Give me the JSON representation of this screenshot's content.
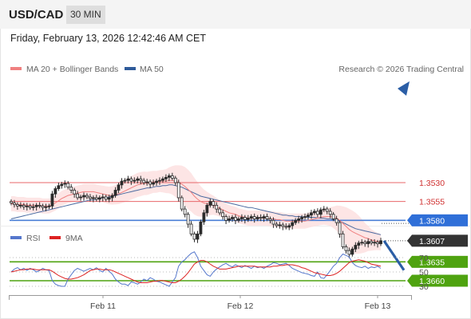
{
  "header": {
    "symbol": "USD/CAD",
    "timeframe": "30 MIN",
    "datetime": "Friday, February 13, 2026 12:42:46 AM CET",
    "watermark": "Research © 2026 Trading Central"
  },
  "colors": {
    "resistance": "#4fa310",
    "pivot": "#4a7fd6",
    "support": "#e8676a",
    "last": "#333333",
    "arrow": "#2b5ea6",
    "band": "#fde0e0",
    "ma20": "#f08080",
    "ma50": "#4a6aa0",
    "rsi": "#5577cc",
    "rsi_ma": "#dd2222"
  },
  "chart_data": [
    {
      "type": "candlestick",
      "title": "",
      "legend": [
        {
          "name": "MA 20 + Bollinger Bands",
          "color": "#f08080"
        },
        {
          "name": "MA 50",
          "color": "#2e5a9a"
        }
      ],
      "x_ticks": [
        "Feb 11",
        "Feb 12",
        "Feb 13"
      ],
      "ylim": [
        1.351,
        1.3672
      ],
      "levels": [
        {
          "value": "1.3660",
          "kind": "resistance"
        },
        {
          "value": "1.3635",
          "kind": "resistance"
        },
        {
          "value": "1.3607",
          "kind": "last"
        },
        {
          "value": "1.3580",
          "kind": "pivot"
        },
        {
          "value": "1.3555",
          "kind": "support"
        },
        {
          "value": "1.3530",
          "kind": "support"
        }
      ],
      "close": [
        1.3557,
        1.3559,
        1.3561,
        1.356,
        1.3562,
        1.3561,
        1.3563,
        1.3562,
        1.356,
        1.3561,
        1.3563,
        1.3562,
        1.3561,
        1.3545,
        1.3538,
        1.3534,
        1.3532,
        1.3531,
        1.3536,
        1.354,
        1.3545,
        1.355,
        1.3549,
        1.3547,
        1.3549,
        1.3551,
        1.355,
        1.3552,
        1.355,
        1.3549,
        1.3552,
        1.355,
        1.3547,
        1.354,
        1.3533,
        1.3528,
        1.3527,
        1.3525,
        1.3528,
        1.3527,
        1.3525,
        1.3527,
        1.353,
        1.3529,
        1.3532,
        1.353,
        1.3528,
        1.3527,
        1.3525,
        1.3523,
        1.3521,
        1.3524,
        1.353,
        1.355,
        1.3565,
        1.3572,
        1.3585,
        1.3598,
        1.3605,
        1.3598,
        1.3582,
        1.357,
        1.356,
        1.3555,
        1.356,
        1.3565,
        1.357,
        1.3575,
        1.358,
        1.3578,
        1.3576,
        1.358,
        1.3578,
        1.3576,
        1.3579,
        1.3577,
        1.3575,
        1.3578,
        1.3576,
        1.3577,
        1.3575,
        1.3578,
        1.358,
        1.3585,
        1.3587,
        1.3586,
        1.3588,
        1.3589,
        1.3587,
        1.3583,
        1.358,
        1.3578,
        1.3576,
        1.3575,
        1.3573,
        1.357,
        1.3568,
        1.3572,
        1.3566,
        1.3565,
        1.3568,
        1.3572,
        1.3578,
        1.3583,
        1.3598,
        1.3615,
        1.362,
        1.3625,
        1.3618,
        1.3613,
        1.361,
        1.3609,
        1.3611,
        1.3608,
        1.361,
        1.3609,
        1.3611,
        1.3607
      ],
      "ma20": [
        1.3558,
        1.3558,
        1.3559,
        1.3559,
        1.3559,
        1.356,
        1.356,
        1.356,
        1.356,
        1.356,
        1.3561,
        1.3561,
        1.3561,
        1.3559,
        1.3557,
        1.3554,
        1.3551,
        1.3549,
        1.3547,
        1.3546,
        1.3545,
        1.3544,
        1.3543,
        1.3542,
        1.3542,
        1.3542,
        1.3542,
        1.3543,
        1.3544,
        1.3545,
        1.3546,
        1.3547,
        1.3547,
        1.3546,
        1.3545,
        1.3543,
        1.3541,
        1.3539,
        1.3537,
        1.3535,
        1.3533,
        1.3532,
        1.3531,
        1.3531,
        1.353,
        1.3529,
        1.3529,
        1.3528,
        1.3528,
        1.3528,
        1.3527,
        1.3527,
        1.3528,
        1.353,
        1.3532,
        1.3535,
        1.3539,
        1.3543,
        1.3548,
        1.3552,
        1.3555,
        1.3557,
        1.3558,
        1.3559,
        1.356,
        1.3562,
        1.3564,
        1.3566,
        1.3568,
        1.357,
        1.3571,
        1.3572,
        1.3574,
        1.3575,
        1.3576,
        1.3577,
        1.3577,
        1.3577,
        1.3577,
        1.3577,
        1.3577,
        1.3577,
        1.3578,
        1.3578,
        1.3579,
        1.3579,
        1.358,
        1.3581,
        1.3581,
        1.3581,
        1.3581,
        1.3581,
        1.3581,
        1.3581,
        1.358,
        1.3579,
        1.3578,
        1.3577,
        1.3576,
        1.3575,
        1.3575,
        1.3575,
        1.3576,
        1.3577,
        1.358,
        1.3584,
        1.3588,
        1.3592,
        1.3595,
        1.3597,
        1.3599,
        1.3601,
        1.3603,
        1.3604,
        1.3606,
        1.3607,
        1.3608,
        1.3609
      ],
      "ma50": [
        1.3578,
        1.3577,
        1.3576,
        1.3575,
        1.3574,
        1.3573,
        1.3572,
        1.3571,
        1.357,
        1.3569,
        1.3568,
        1.3567,
        1.3566,
        1.3565,
        1.3564,
        1.3563,
        1.3562,
        1.3561,
        1.356,
        1.3559,
        1.3558,
        1.3557,
        1.3556,
        1.3555,
        1.3554,
        1.3553,
        1.3553,
        1.3552,
        1.3551,
        1.355,
        1.355,
        1.3549,
        1.3548,
        1.3547,
        1.3546,
        1.3545,
        1.3544,
        1.3543,
        1.3542,
        1.3541,
        1.354,
        1.3539,
        1.3538,
        1.3537,
        1.3537,
        1.3536,
        1.3535,
        1.3535,
        1.3534,
        1.3534,
        1.3533,
        1.3533,
        1.3534,
        1.3535,
        1.3536,
        1.3538,
        1.354,
        1.3542,
        1.3544,
        1.3546,
        1.3548,
        1.3549,
        1.355,
        1.3551,
        1.3552,
        1.3553,
        1.3554,
        1.3555,
        1.3556,
        1.3557,
        1.3558,
        1.3559,
        1.356,
        1.3561,
        1.3562,
        1.3563,
        1.3563,
        1.3564,
        1.3565,
        1.3566,
        1.3567,
        1.3568,
        1.3569,
        1.357,
        1.3571,
        1.3572,
        1.3573,
        1.3573,
        1.3574,
        1.3574,
        1.3575,
        1.3575,
        1.3575,
        1.3576,
        1.3576,
        1.3576,
        1.3576,
        1.3577,
        1.3577,
        1.3577,
        1.3578,
        1.3578,
        1.3579,
        1.358,
        1.3581,
        1.3583,
        1.3585,
        1.3587,
        1.3589,
        1.3591,
        1.3592,
        1.3593,
        1.3594,
        1.3595,
        1.3596,
        1.3597,
        1.3598,
        1.3599
      ]
    },
    {
      "type": "line",
      "title": "",
      "legend": [
        {
          "name": "RSI",
          "color": "#5577cc"
        },
        {
          "name": "9MA",
          "color": "#dd2222"
        }
      ],
      "y_ticks": [
        "70",
        "50",
        "30"
      ],
      "ylim": [
        20,
        80
      ],
      "rsi": [
        50,
        54,
        56,
        53,
        55,
        52,
        55,
        53,
        50,
        52,
        55,
        53,
        52,
        38,
        33,
        31,
        30,
        30,
        40,
        46,
        52,
        55,
        53,
        51,
        53,
        55,
        53,
        56,
        52,
        50,
        55,
        51,
        47,
        40,
        36,
        33,
        33,
        31,
        36,
        35,
        33,
        36,
        40,
        38,
        42,
        40,
        37,
        36,
        34,
        32,
        30,
        36,
        42,
        58,
        64,
        67,
        72,
        76,
        78,
        70,
        58,
        52,
        46,
        44,
        50,
        54,
        57,
        60,
        62,
        59,
        57,
        60,
        58,
        56,
        59,
        57,
        55,
        58,
        56,
        57,
        55,
        58,
        60,
        63,
        62,
        60,
        61,
        62,
        59,
        55,
        53,
        51,
        49,
        48,
        47,
        45,
        44,
        50,
        42,
        41,
        46,
        52,
        58,
        62,
        70,
        75,
        73,
        71,
        63,
        59,
        57,
        56,
        58,
        55,
        57,
        56,
        58,
        55
      ],
      "rsi_ma": [
        50,
        51,
        52,
        53,
        53,
        54,
        54,
        54,
        53,
        53,
        53,
        53,
        53,
        51,
        48,
        45,
        43,
        41,
        40,
        40,
        41,
        42,
        44,
        46,
        49,
        52,
        53,
        54,
        54,
        53,
        53,
        53,
        52,
        50,
        48,
        46,
        44,
        42,
        40,
        38,
        36,
        35,
        35,
        35,
        36,
        37,
        37,
        38,
        38,
        37,
        36,
        35,
        35,
        37,
        40,
        44,
        49,
        55,
        61,
        64,
        66,
        66,
        64,
        61,
        58,
        56,
        54,
        54,
        54,
        55,
        56,
        57,
        58,
        58,
        58,
        58,
        58,
        58,
        57,
        57,
        57,
        57,
        57,
        58,
        58,
        59,
        59,
        60,
        60,
        60,
        59,
        58,
        56,
        55,
        53,
        51,
        49,
        48,
        47,
        46,
        45,
        45,
        46,
        48,
        51,
        55,
        59,
        63,
        65,
        66,
        67,
        66,
        65,
        63,
        61,
        60,
        59,
        58
      ]
    }
  ]
}
